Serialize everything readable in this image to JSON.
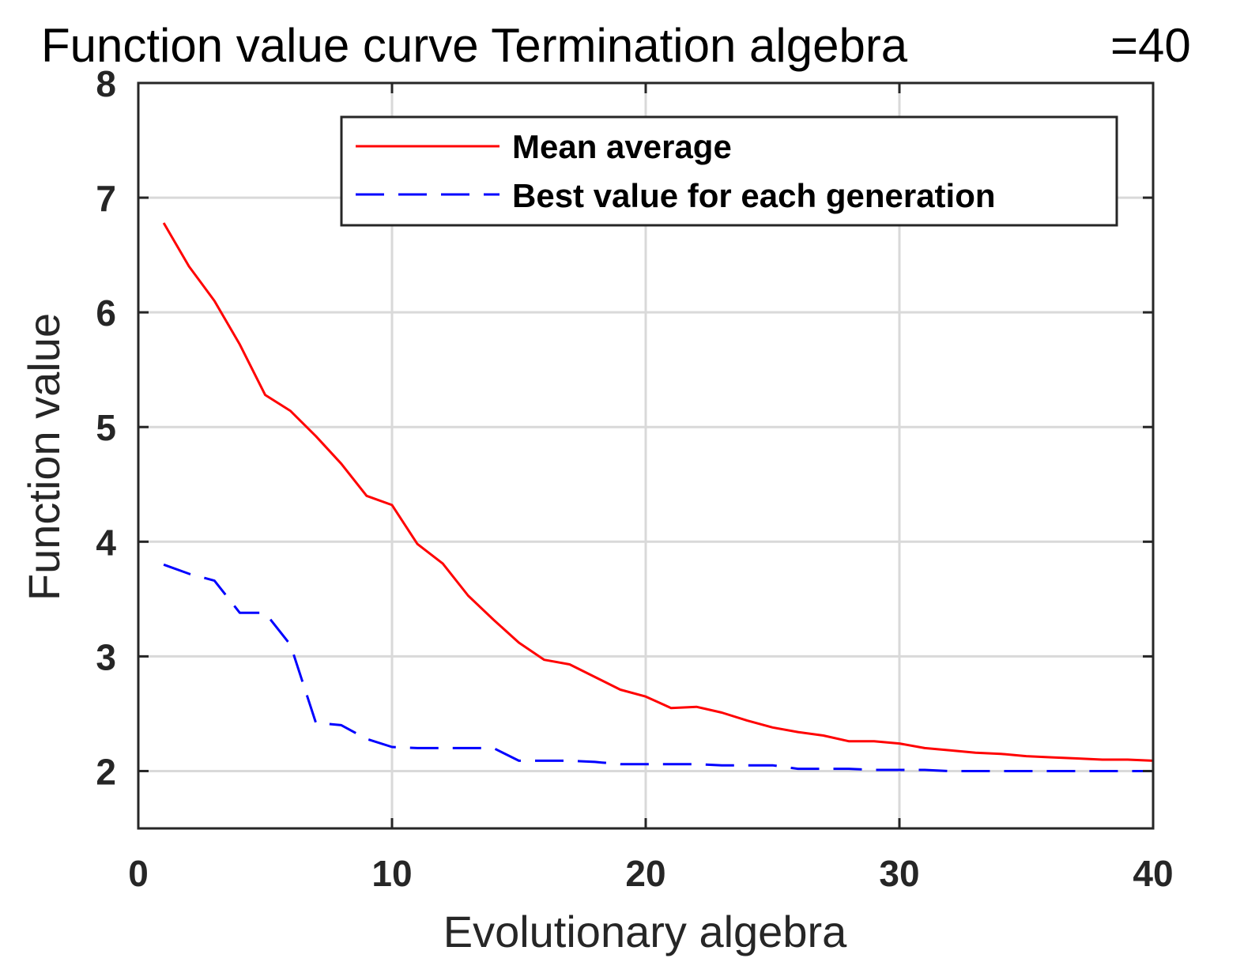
{
  "chart_data": {
    "type": "line",
    "title": "Function value curve  Termination algebra",
    "title_suffix": "=40",
    "xlabel": "Evolutionary algebra",
    "ylabel": "Function value",
    "xlim": [
      0,
      40
    ],
    "ylim": [
      1.5,
      8
    ],
    "xticks": [
      0,
      10,
      20,
      30,
      40
    ],
    "xtick_labels": [
      "0",
      "10",
      "20",
      "30",
      "40"
    ],
    "yticks": [
      2,
      3,
      4,
      5,
      6,
      7,
      8
    ],
    "ytick_labels": [
      "2",
      "3",
      "4",
      "5",
      "6",
      "7",
      "8"
    ],
    "grid": true,
    "legend_position": "top-right",
    "x": [
      1,
      2,
      3,
      4,
      5,
      6,
      7,
      8,
      9,
      10,
      11,
      12,
      13,
      14,
      15,
      16,
      17,
      18,
      19,
      20,
      21,
      22,
      23,
      24,
      25,
      26,
      27,
      28,
      29,
      30,
      31,
      32,
      33,
      34,
      35,
      36,
      37,
      38,
      39,
      40
    ],
    "series": [
      {
        "name": "Mean average",
        "color": "#ff0000",
        "style": "solid",
        "values": [
          6.78,
          6.4,
          6.1,
          5.72,
          5.28,
          5.14,
          4.92,
          4.68,
          4.4,
          4.32,
          3.98,
          3.81,
          3.53,
          3.32,
          3.12,
          2.97,
          2.93,
          2.82,
          2.71,
          2.65,
          2.55,
          2.56,
          2.51,
          2.44,
          2.38,
          2.34,
          2.31,
          2.26,
          2.26,
          2.24,
          2.2,
          2.18,
          2.16,
          2.15,
          2.13,
          2.12,
          2.11,
          2.1,
          2.1,
          2.09
        ]
      },
      {
        "name": "Best value for each generation",
        "color": "#0000ff",
        "style": "dashed",
        "values": [
          3.8,
          3.72,
          3.66,
          3.38,
          3.38,
          3.1,
          2.42,
          2.4,
          2.28,
          2.21,
          2.2,
          2.2,
          2.2,
          2.2,
          2.09,
          2.09,
          2.09,
          2.08,
          2.06,
          2.06,
          2.06,
          2.06,
          2.05,
          2.05,
          2.05,
          2.02,
          2.02,
          2.02,
          2.01,
          2.01,
          2.01,
          2.0,
          2.0,
          2.0,
          2.0,
          2.0,
          2.0,
          2.0,
          2.0,
          2.0
        ]
      }
    ]
  }
}
